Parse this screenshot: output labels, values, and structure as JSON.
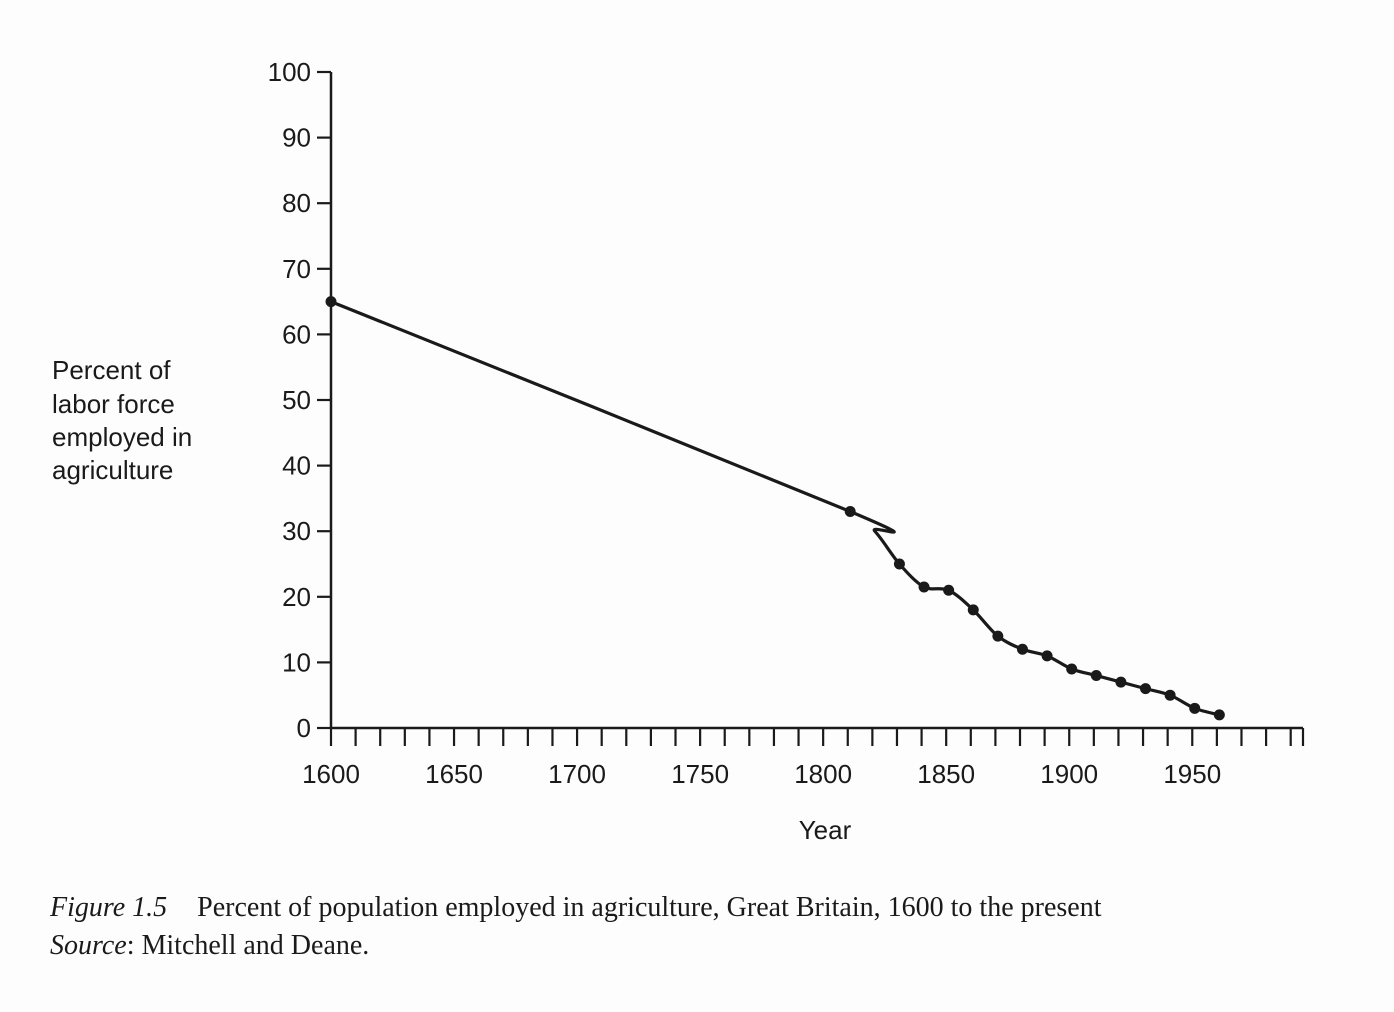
{
  "chart_data": {
    "type": "line",
    "xlabel": "Year",
    "ylabel_lines": [
      "Percent of",
      "labor force",
      "employed in",
      "agriculture"
    ],
    "xlim": [
      1600,
      1995
    ],
    "ylim": [
      0,
      100
    ],
    "x_tick_labels": [
      1600,
      1650,
      1700,
      1750,
      1800,
      1850,
      1900,
      1950
    ],
    "x_minor_tick_step": 10,
    "y_ticks": [
      0,
      10,
      20,
      30,
      40,
      50,
      60,
      70,
      80,
      90,
      100
    ],
    "grid": false,
    "series": [
      {
        "x": [
          1600,
          1811,
          1821,
          1831,
          1841,
          1851,
          1861,
          1871,
          1881,
          1891,
          1901,
          1911,
          1921,
          1931,
          1941,
          1951,
          1961
        ],
        "values": [
          65,
          33,
          30,
          25,
          21.5,
          21,
          18,
          14,
          12,
          11,
          9,
          8,
          7,
          6,
          5,
          3,
          2
        ]
      }
    ]
  },
  "caption": {
    "figure_label": "Figure 1.5",
    "figure_text": "Percent of population employed in agriculture, Great Britain, 1600 to the present",
    "source_label": "Source",
    "source_text": ": Mitchell and Deane."
  }
}
